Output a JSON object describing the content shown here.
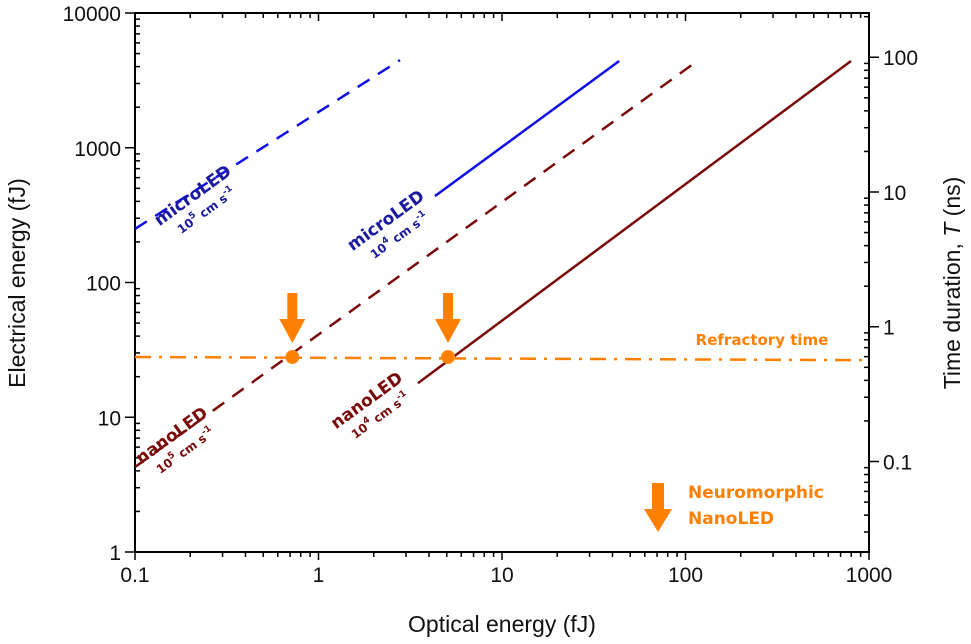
{
  "chart_data": {
    "type": "line",
    "title": "",
    "xlabel": "Optical energy (fJ)",
    "ylabel": "Electrical energy (fJ)",
    "y2label_prefix": "Time duration, ",
    "y2label_italic": "T",
    "y2label_suffix": " (ns)",
    "xscale": "log",
    "yscale": "log",
    "xlim": [
      0.1,
      1000
    ],
    "ylim": [
      1,
      10000
    ],
    "y2lim": [
      0.0213,
      213
    ],
    "x_ticks": [
      0.1,
      1,
      10,
      100,
      1000
    ],
    "x_tick_labels": [
      "0.1",
      "1",
      "10",
      "100",
      "1000"
    ],
    "y_ticks": [
      1,
      10,
      100,
      1000,
      10000
    ],
    "y_tick_labels": [
      "1",
      "10",
      "100",
      "1000",
      "10000"
    ],
    "y2_ticks": [
      0.1,
      1,
      10,
      100
    ],
    "y2_tick_labels": [
      "0.1",
      "1",
      "10",
      "100"
    ],
    "grid": false,
    "series": [
      {
        "name": "microLED 10^5 cm s^-1",
        "color": "#1010e6",
        "style": "dashed",
        "x": [
          0.1,
          2.78
        ],
        "y": [
          250,
          4470
        ]
      },
      {
        "name": "microLED 10^4 cm s^-1",
        "color": "#1010e6",
        "style": "solid",
        "x": [
          4.31,
          43.5
        ],
        "y": [
          438,
          4400
        ]
      },
      {
        "name": "nanoLED 10^5 cm s^-1",
        "color": "#7a0a0a",
        "style": "dashed",
        "x": [
          0.1,
          116
        ],
        "y": [
          4.27,
          4400
        ]
      },
      {
        "name": "nanoLED 10^4 cm s^-1",
        "color": "#7a0a0a",
        "style": "solid",
        "x": [
          3.48,
          798
        ],
        "y": [
          17.9,
          4400
        ]
      },
      {
        "name": "Refractory time",
        "color": "#ff8000",
        "style": "dashdot",
        "x": [
          0.1,
          1000
        ],
        "y": [
          28,
          26.5
        ]
      }
    ],
    "markers": [
      {
        "name": "Neuromorphic NanoLED 10^5",
        "x": 0.72,
        "y": 28,
        "color": "#ff8000"
      },
      {
        "name": "Neuromorphic NanoLED 10^4",
        "x": 5.08,
        "y": 28,
        "color": "#ff8000"
      }
    ],
    "annotations": [
      {
        "id": "microled-1e5",
        "main": "microLED",
        "sub_base": "10",
        "sub_exp": "5",
        "sub_unit": " cm s",
        "sub_unit_exp": "-1",
        "color": "#1a1aa0"
      },
      {
        "id": "microled-1e4",
        "main": "microLED",
        "sub_base": "10",
        "sub_exp": "4",
        "sub_unit": " cm s",
        "sub_unit_exp": "-1",
        "color": "#1a1aa0"
      },
      {
        "id": "nanoled-1e5",
        "main": "nanoLED",
        "sub_base": "10",
        "sub_exp": "5",
        "sub_unit": " cm s",
        "sub_unit_exp": "-1",
        "color": "#7a0a0a"
      },
      {
        "id": "nanoled-1e4",
        "main": "nanoLED",
        "sub_base": "10",
        "sub_exp": "4",
        "sub_unit": " cm s",
        "sub_unit_exp": "-1",
        "color": "#7a0a0a"
      }
    ],
    "refractory_label": "Refractory time",
    "legend": {
      "line1": "Neuromorphic",
      "line2": "NanoLED",
      "color": "#ff8000",
      "placement": "bottom-right"
    }
  }
}
